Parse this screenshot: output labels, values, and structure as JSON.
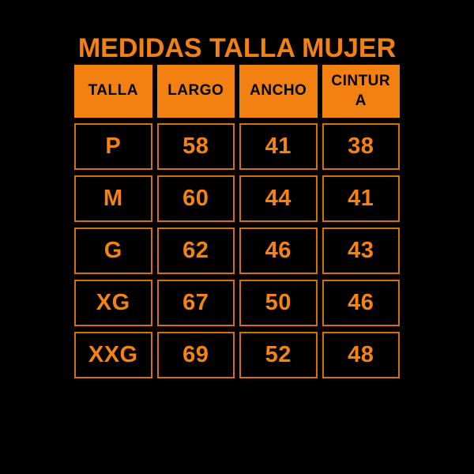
{
  "title": "MEDIDAS TALLA MUJER",
  "colors": {
    "background": "#000000",
    "orange": "#F28111",
    "number_orange": "#F58312",
    "cell_border": "#D4700A",
    "header_text": "#000000"
  },
  "table": {
    "headers": [
      "TALLA",
      "LARGO",
      "ANCHO",
      "CINTURA"
    ],
    "rows": [
      [
        "P",
        "58",
        "41",
        "38"
      ],
      [
        "M",
        "60",
        "44",
        "41"
      ],
      [
        "G",
        "62",
        "46",
        "43"
      ],
      [
        "XG",
        "67",
        "50",
        "46"
      ],
      [
        "XXG",
        "69",
        "52",
        "48"
      ]
    ]
  },
  "chart_data": {
    "type": "table",
    "title": "MEDIDAS TALLA MUJER",
    "columns": [
      "TALLA",
      "LARGO",
      "ANCHO",
      "CINTURA"
    ],
    "rows": [
      [
        "P",
        58,
        41,
        38
      ],
      [
        "M",
        60,
        44,
        41
      ],
      [
        "G",
        62,
        46,
        43
      ],
      [
        "XG",
        67,
        50,
        46
      ],
      [
        "XXG",
        69,
        52,
        48
      ]
    ],
    "notes": "Women's garment size chart; measurements in cm; black background, orange accent"
  }
}
